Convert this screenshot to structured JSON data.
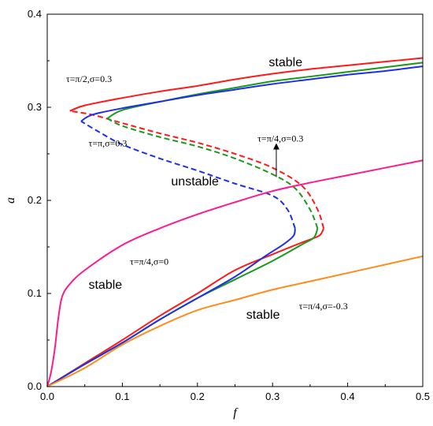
{
  "chart_data": {
    "type": "line",
    "xlabel": "f",
    "ylabel": "a",
    "xlim": [
      0,
      0.5
    ],
    "ylim": [
      0,
      0.4
    ],
    "xticks": [
      0.0,
      0.1,
      0.2,
      0.3,
      0.4,
      0.5
    ],
    "yticks": [
      0.0,
      0.1,
      0.2,
      0.3,
      0.4
    ],
    "xtick_labels": [
      "0.0",
      "0.1",
      "0.2",
      "0.3",
      "0.4",
      "0.5"
    ],
    "ytick_labels": [
      "0.0",
      "0.1",
      "0.2",
      "0.3",
      "0.4"
    ],
    "grid": false,
    "series": [
      {
        "color": "#ff1a1a",
        "lower_stable": [
          [
            0.0,
            0.0
          ],
          [
            0.05,
            0.025
          ],
          [
            0.1,
            0.05
          ],
          [
            0.15,
            0.076
          ],
          [
            0.2,
            0.1
          ],
          [
            0.25,
            0.125
          ],
          [
            0.3,
            0.142
          ],
          [
            0.34,
            0.155
          ],
          [
            0.362,
            0.162
          ],
          [
            0.368,
            0.17
          ]
        ],
        "unstable": [
          [
            0.368,
            0.17
          ],
          [
            0.36,
            0.19
          ],
          [
            0.34,
            0.215
          ],
          [
            0.3,
            0.235
          ],
          [
            0.25,
            0.25
          ],
          [
            0.2,
            0.262
          ],
          [
            0.15,
            0.272
          ],
          [
            0.1,
            0.283
          ],
          [
            0.06,
            0.292
          ],
          [
            0.03,
            0.296
          ]
        ],
        "upper_stable": [
          [
            0.03,
            0.296
          ],
          [
            0.05,
            0.302
          ],
          [
            0.1,
            0.31
          ],
          [
            0.15,
            0.317
          ],
          [
            0.2,
            0.323
          ],
          [
            0.25,
            0.33
          ],
          [
            0.3,
            0.336
          ],
          [
            0.35,
            0.341
          ],
          [
            0.4,
            0.345
          ],
          [
            0.45,
            0.349
          ],
          [
            0.5,
            0.353
          ]
        ]
      },
      {
        "color": "#1a9a1a",
        "lower_stable": [
          [
            0.0,
            0.0
          ],
          [
            0.05,
            0.024
          ],
          [
            0.1,
            0.047
          ],
          [
            0.15,
            0.072
          ],
          [
            0.2,
            0.095
          ],
          [
            0.25,
            0.115
          ],
          [
            0.3,
            0.135
          ],
          [
            0.34,
            0.153
          ],
          [
            0.355,
            0.16
          ],
          [
            0.36,
            0.17
          ]
        ],
        "unstable": [
          [
            0.36,
            0.17
          ],
          [
            0.35,
            0.19
          ],
          [
            0.33,
            0.213
          ],
          [
            0.3,
            0.228
          ],
          [
            0.25,
            0.245
          ],
          [
            0.2,
            0.258
          ],
          [
            0.15,
            0.268
          ],
          [
            0.1,
            0.28
          ],
          [
            0.08,
            0.288
          ]
        ],
        "upper_stable": [
          [
            0.08,
            0.288
          ],
          [
            0.1,
            0.297
          ],
          [
            0.15,
            0.306
          ],
          [
            0.2,
            0.314
          ],
          [
            0.25,
            0.321
          ],
          [
            0.3,
            0.328
          ],
          [
            0.35,
            0.333
          ],
          [
            0.4,
            0.338
          ],
          [
            0.45,
            0.343
          ],
          [
            0.5,
            0.348
          ]
        ]
      },
      {
        "color": "#1f2fe6",
        "lower_stable": [
          [
            0.0,
            0.0
          ],
          [
            0.05,
            0.024
          ],
          [
            0.1,
            0.047
          ],
          [
            0.15,
            0.072
          ],
          [
            0.2,
            0.095
          ],
          [
            0.25,
            0.118
          ],
          [
            0.29,
            0.14
          ],
          [
            0.315,
            0.153
          ],
          [
            0.328,
            0.162
          ],
          [
            0.33,
            0.17
          ]
        ],
        "unstable": [
          [
            0.33,
            0.17
          ],
          [
            0.32,
            0.19
          ],
          [
            0.3,
            0.205
          ],
          [
            0.25,
            0.218
          ],
          [
            0.2,
            0.232
          ],
          [
            0.15,
            0.245
          ],
          [
            0.1,
            0.26
          ],
          [
            0.07,
            0.273
          ],
          [
            0.045,
            0.285
          ]
        ],
        "upper_stable": [
          [
            0.045,
            0.285
          ],
          [
            0.06,
            0.292
          ],
          [
            0.1,
            0.299
          ],
          [
            0.15,
            0.306
          ],
          [
            0.2,
            0.313
          ],
          [
            0.25,
            0.319
          ],
          [
            0.3,
            0.325
          ],
          [
            0.35,
            0.33
          ],
          [
            0.4,
            0.335
          ],
          [
            0.45,
            0.339
          ],
          [
            0.5,
            0.344
          ]
        ]
      },
      {
        "color": "#ff1a8c",
        "points": [
          [
            0.0,
            0.0
          ],
          [
            0.005,
            0.015
          ],
          [
            0.01,
            0.04
          ],
          [
            0.015,
            0.075
          ],
          [
            0.02,
            0.097
          ],
          [
            0.03,
            0.11
          ],
          [
            0.05,
            0.125
          ],
          [
            0.1,
            0.152
          ],
          [
            0.15,
            0.17
          ],
          [
            0.2,
            0.185
          ],
          [
            0.25,
            0.198
          ],
          [
            0.3,
            0.21
          ],
          [
            0.35,
            0.219
          ],
          [
            0.4,
            0.227
          ],
          [
            0.45,
            0.235
          ],
          [
            0.5,
            0.243
          ]
        ]
      },
      {
        "color": "#ff8c1a",
        "points": [
          [
            0.0,
            0.0
          ],
          [
            0.05,
            0.02
          ],
          [
            0.1,
            0.045
          ],
          [
            0.15,
            0.065
          ],
          [
            0.2,
            0.082
          ],
          [
            0.25,
            0.093
          ],
          [
            0.3,
            0.104
          ],
          [
            0.35,
            0.113
          ],
          [
            0.4,
            0.122
          ],
          [
            0.45,
            0.131
          ],
          [
            0.5,
            0.14
          ]
        ]
      }
    ],
    "annotations": [
      {
        "text": "stable",
        "x": 0.295,
        "y": 0.344,
        "size": "large"
      },
      {
        "text": "τ=π/2,σ=0.3",
        "x": 0.025,
        "y": 0.327,
        "size": "small"
      },
      {
        "text": "τ=π,σ=0.3",
        "x": 0.055,
        "y": 0.258,
        "size": "small"
      },
      {
        "text": "τ=π/4,σ=0.3",
        "x": 0.28,
        "y": 0.263,
        "size": "small"
      },
      {
        "text": "unstable",
        "x": 0.165,
        "y": 0.216,
        "size": "large"
      },
      {
        "text": "τ=π/4,σ=0",
        "x": 0.11,
        "y": 0.131,
        "size": "small"
      },
      {
        "text": "stable",
        "x": 0.055,
        "y": 0.105,
        "size": "large"
      },
      {
        "text": "τ=π/4,σ=-0.3",
        "x": 0.335,
        "y": 0.083,
        "size": "small"
      },
      {
        "text": "stable",
        "x": 0.265,
        "y": 0.073,
        "size": "large"
      }
    ],
    "arrow": {
      "from": [
        0.305,
        0.225
      ],
      "to": [
        0.305,
        0.258
      ]
    }
  }
}
